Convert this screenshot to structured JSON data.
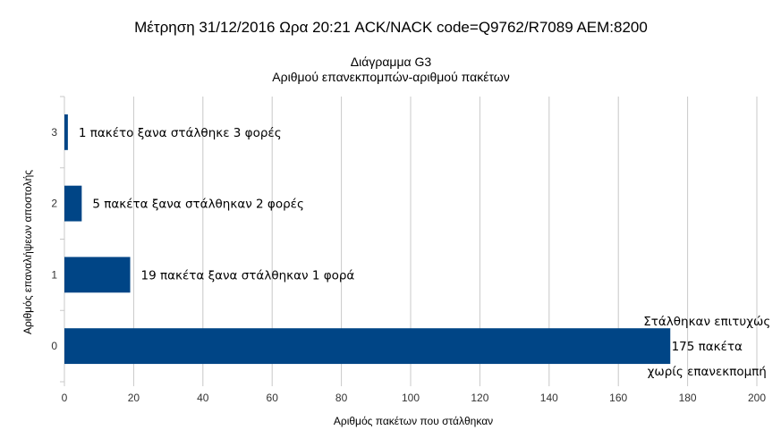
{
  "chart_data": {
    "type": "bar",
    "orientation": "horizontal",
    "title": "Μέτρηση 31/12/2016 Ωρα 20:21 ACK/NACK code=Q9762/R7089 AEM:8200",
    "subtitle": [
      "Διάγραμμα G3",
      "Αριθμού επανεκπομπών-αριθμού πακέτων"
    ],
    "xlabel": "Αριθμός πακέτων που στάλθηκαν",
    "ylabel": "Αριθμός επαναλήψεων αποστολής",
    "categories": [
      "0",
      "1",
      "2",
      "3"
    ],
    "values": [
      175,
      19,
      5,
      1
    ],
    "xlim": [
      0,
      200
    ],
    "xticks": [
      "0",
      "20",
      "40",
      "60",
      "80",
      "100",
      "120",
      "140",
      "160",
      "180",
      "200"
    ],
    "grid": true,
    "legend": "none",
    "bar_color": "#004586",
    "data_labels": [
      [
        "Στάλθηκαν επιτυχώς",
        "175 πακέτα",
        "χωρίς επανεκπομπή"
      ],
      [
        "19 πακέτα ξανα στάλθηκαν 1 φορά"
      ],
      [
        "5 πακέτα ξανα στάλθηκαν 2 φορές"
      ],
      [
        "1 πακέτο ξανα στάλθηκε 3 φορές"
      ]
    ]
  }
}
